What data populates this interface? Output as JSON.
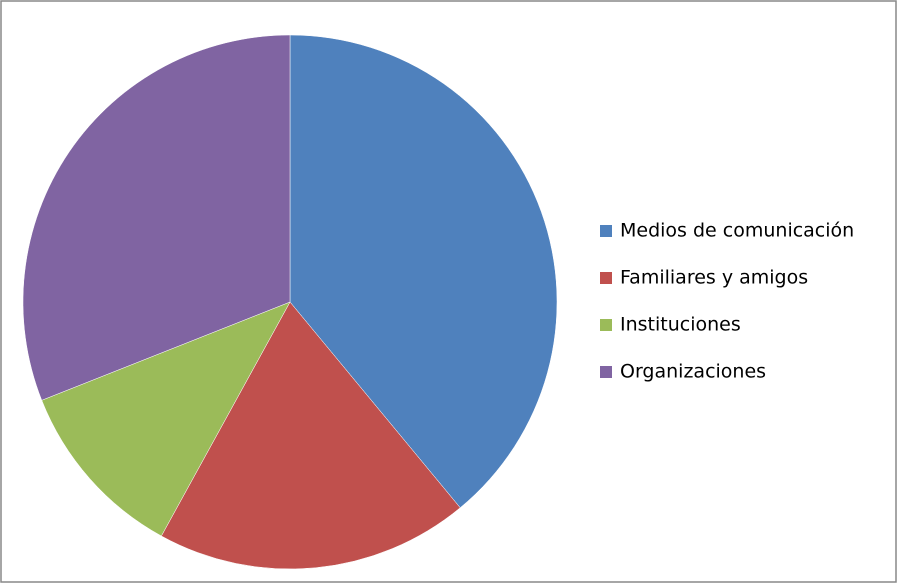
{
  "chart_data": {
    "type": "pie",
    "categories": [
      "Medios de comunicación",
      "Familiares y amigos",
      "Instituciones",
      "Organizaciones"
    ],
    "values": [
      39,
      19,
      11,
      31
    ],
    "colors": [
      "#4f81bd",
      "#c0504d",
      "#9bbb59",
      "#8064a2"
    ],
    "legend": "right"
  }
}
